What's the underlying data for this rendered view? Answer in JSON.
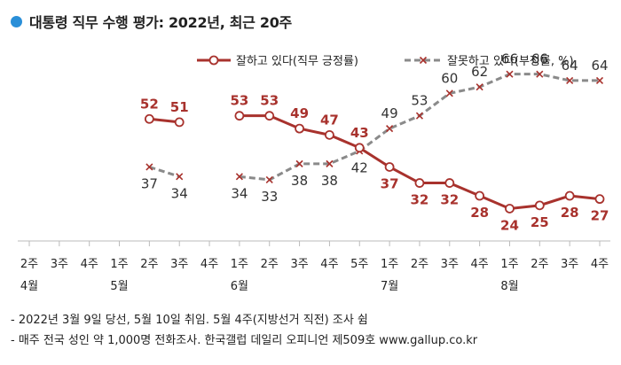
{
  "title": "대통령 직무 수행 평가: 2022년, 최근 20주",
  "colors": {
    "positive": "#a8322d",
    "negative": "#8a8a8a",
    "title_dot": "#2a8fd8",
    "axis": "#bbbbbb"
  },
  "chart_data": {
    "type": "line",
    "categories": [
      "2주",
      "3주",
      "4주",
      "1주",
      "2주",
      "3주",
      "4주",
      "1주",
      "2주",
      "3주",
      "4주",
      "5주",
      "1주",
      "2주",
      "3주",
      "4주",
      "1주",
      "2주",
      "3주",
      "4주"
    ],
    "month_labels": [
      {
        "label": "4월",
        "index": 0
      },
      {
        "label": "5월",
        "index": 3
      },
      {
        "label": "6월",
        "index": 7
      },
      {
        "label": "7월",
        "index": 12
      },
      {
        "label": "8월",
        "index": 16
      }
    ],
    "series": [
      {
        "name": "잘하고 있다(직무 긍정률)",
        "style": "solid-circle",
        "values": [
          null,
          null,
          null,
          null,
          52,
          51,
          null,
          53,
          53,
          49,
          47,
          43,
          37,
          32,
          32,
          28,
          24,
          25,
          28,
          27
        ]
      },
      {
        "name": "잘못하고 있다(부정률, %)",
        "style": "dashed-x",
        "values": [
          null,
          null,
          null,
          null,
          37,
          34,
          null,
          34,
          33,
          38,
          38,
          42,
          49,
          53,
          60,
          62,
          66,
          66,
          64,
          64
        ]
      }
    ],
    "ylim": [
      15,
      72
    ],
    "legend_position": "top-right",
    "grid": false
  },
  "notes": [
    "- 2022년 3월 9일 당선, 5월 10일 취임. 5월 4주(지방선거 직전) 조사 쉼",
    "- 매주 전국 성인 약 1,000명 전화조사. 한국갤럽 데일리 오피니언 제509호 www.gallup.co.kr"
  ]
}
